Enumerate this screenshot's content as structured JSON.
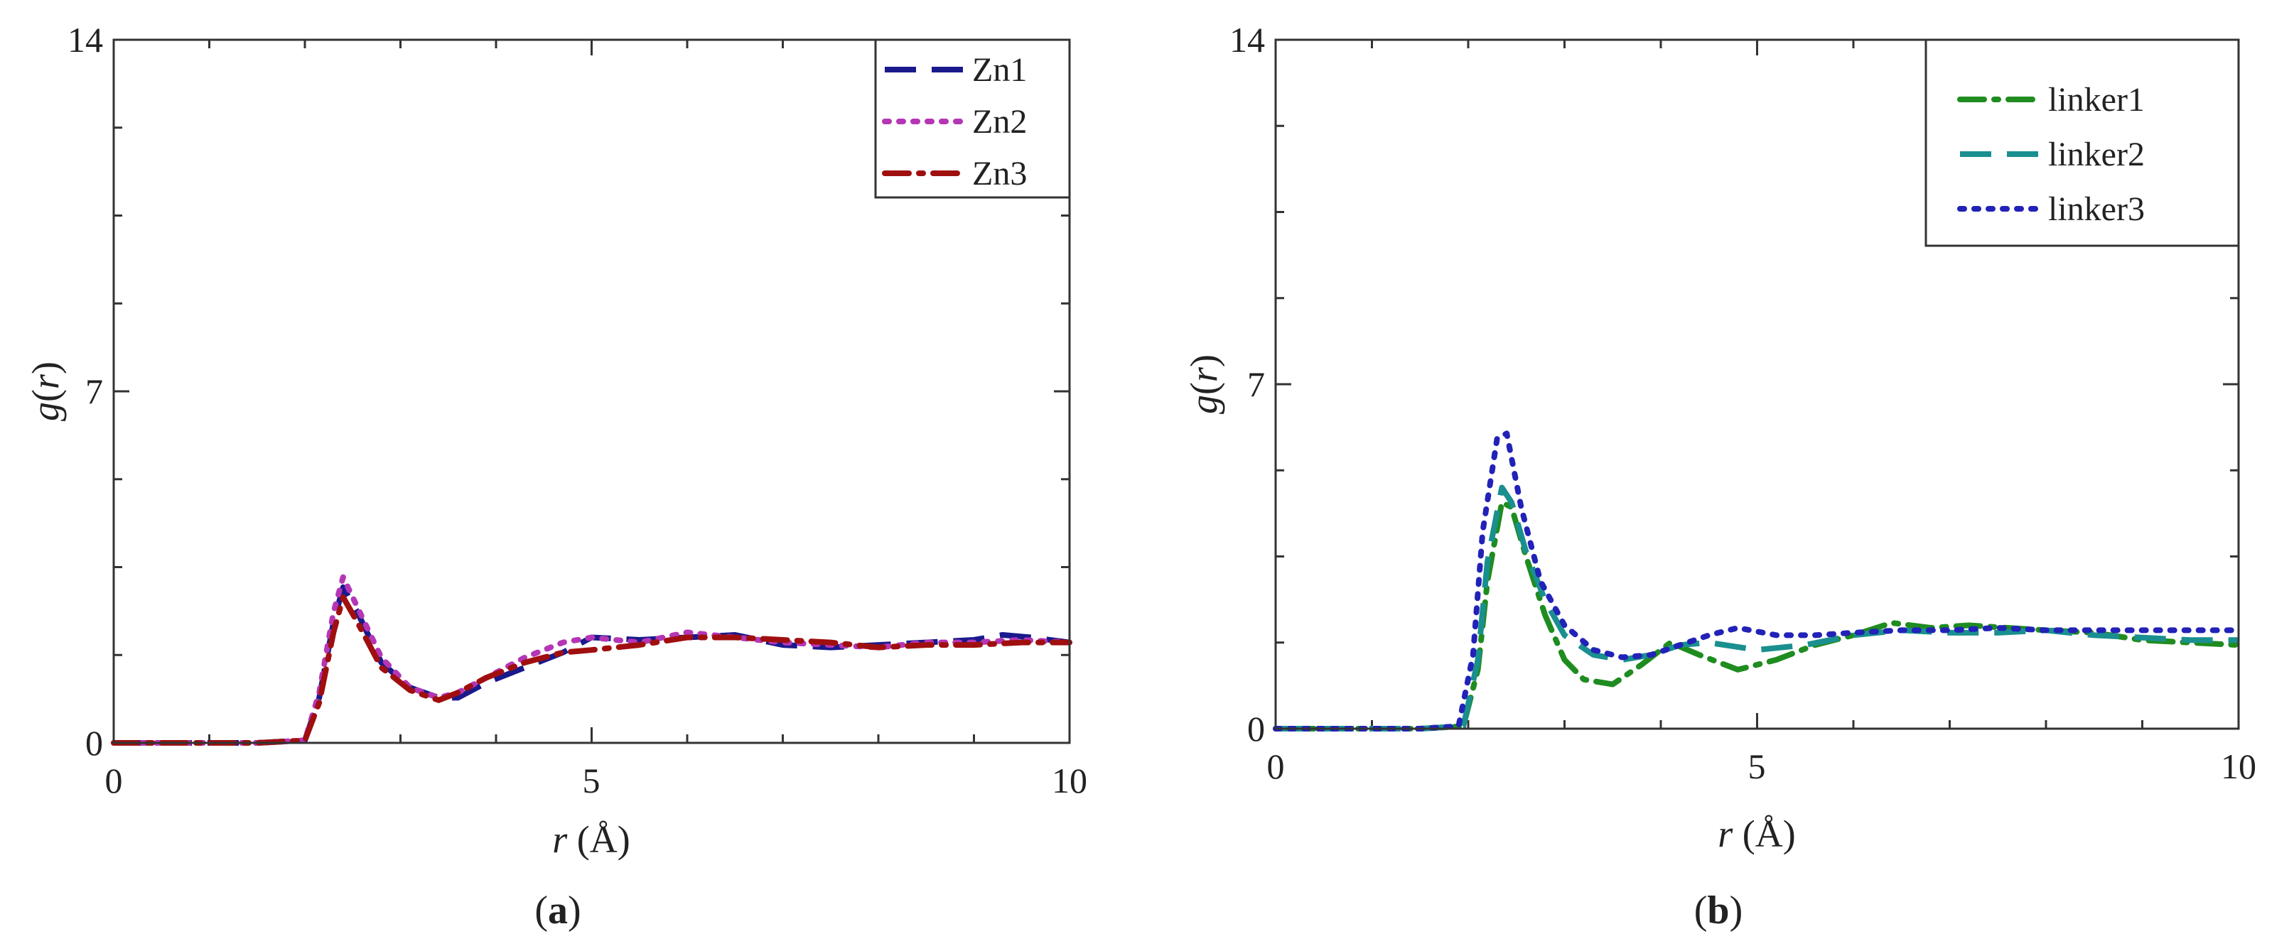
{
  "chart_data": [
    {
      "type": "line",
      "panel_label_open": "(",
      "panel_label": "a",
      "panel_label_close": ")",
      "ylabel_main": "g",
      "ylabel_open": "(",
      "ylabel_var": "r",
      "ylabel_close": ")",
      "xlabel_var": "r",
      "xlabel_unit": " (Å)",
      "xlim": [
        0,
        10
      ],
      "ylim": [
        0,
        14
      ],
      "xticks": [
        0,
        5,
        10
      ],
      "yticks": [
        0,
        7,
        14
      ],
      "legend_position": "top-right",
      "series": [
        {
          "name": "Zn1",
          "color": "#1a1a8c",
          "style": "dashed",
          "x": [
            0,
            1.5,
            2.0,
            2.15,
            2.3,
            2.4,
            2.55,
            2.8,
            3.1,
            3.4,
            3.6,
            3.9,
            4.3,
            4.7,
            5.0,
            5.5,
            6.0,
            6.5,
            7.0,
            7.5,
            8.0,
            8.5,
            9.0,
            9.3,
            9.6,
            10.0
          ],
          "y": [
            0,
            0,
            0.05,
            0.9,
            2.4,
            3.1,
            2.6,
            1.6,
            1.1,
            0.9,
            0.9,
            1.2,
            1.5,
            1.8,
            2.1,
            2.05,
            2.1,
            2.15,
            1.95,
            1.9,
            1.95,
            2.0,
            2.05,
            2.15,
            2.1,
            2.0
          ]
        },
        {
          "name": "Zn2",
          "color": "#b536b5",
          "style": "dotted",
          "x": [
            0,
            1.5,
            2.0,
            2.15,
            2.3,
            2.4,
            2.55,
            2.8,
            3.1,
            3.4,
            3.6,
            3.9,
            4.3,
            4.7,
            5.0,
            5.5,
            6.0,
            6.5,
            7.0,
            7.5,
            8.0,
            8.5,
            9.0,
            9.5,
            10.0
          ],
          "y": [
            0,
            0,
            0.05,
            1.0,
            2.6,
            3.3,
            2.7,
            1.7,
            1.1,
            0.9,
            1.0,
            1.3,
            1.7,
            2.0,
            2.1,
            2.0,
            2.2,
            2.1,
            2.0,
            1.95,
            1.9,
            2.0,
            2.0,
            2.05,
            2.0
          ]
        },
        {
          "name": "Zn3",
          "color": "#a00f0f",
          "style": "dashdot",
          "x": [
            0,
            1.5,
            2.0,
            2.15,
            2.3,
            2.4,
            2.55,
            2.8,
            3.1,
            3.4,
            3.6,
            3.9,
            4.3,
            4.7,
            5.0,
            5.5,
            6.0,
            6.5,
            7.0,
            7.5,
            8.0,
            8.5,
            9.0,
            9.5,
            10.0
          ],
          "y": [
            0,
            0,
            0.05,
            0.8,
            2.2,
            2.9,
            2.4,
            1.5,
            1.05,
            0.85,
            1.0,
            1.3,
            1.6,
            1.8,
            1.85,
            1.95,
            2.1,
            2.1,
            2.05,
            2.0,
            1.9,
            1.95,
            1.95,
            2.0,
            2.0
          ]
        }
      ]
    },
    {
      "type": "line",
      "panel_label_open": "(",
      "panel_label": "b",
      "panel_label_close": ")",
      "ylabel_main": "g",
      "ylabel_open": "(",
      "ylabel_var": "r",
      "ylabel_close": ")",
      "xlabel_var": "r",
      "xlabel_unit": " (Å)",
      "xlim": [
        0,
        10
      ],
      "ylim": [
        0,
        14
      ],
      "xticks": [
        0,
        5,
        10
      ],
      "yticks": [
        0,
        7,
        14
      ],
      "legend_position": "top-right",
      "series": [
        {
          "name": "linker1",
          "color": "#1f8c1f",
          "style": "dashdot",
          "x": [
            0,
            1.5,
            1.95,
            2.1,
            2.2,
            2.35,
            2.45,
            2.6,
            2.8,
            3.0,
            3.2,
            3.5,
            3.8,
            4.1,
            4.4,
            4.8,
            5.2,
            5.6,
            6.0,
            6.4,
            6.8,
            7.2,
            7.6,
            8.0,
            8.5,
            9.0,
            9.5,
            10.0
          ],
          "y": [
            0,
            0,
            0.05,
            1.2,
            3.0,
            4.6,
            4.5,
            3.5,
            2.3,
            1.4,
            1.0,
            0.9,
            1.3,
            1.75,
            1.5,
            1.2,
            1.4,
            1.7,
            1.9,
            2.15,
            2.05,
            2.1,
            2.05,
            2.0,
            1.95,
            1.8,
            1.75,
            1.7
          ]
        },
        {
          "name": "linker2",
          "color": "#1a8f8f",
          "style": "dashed",
          "x": [
            0,
            1.5,
            1.95,
            2.1,
            2.2,
            2.35,
            2.45,
            2.6,
            2.8,
            3.0,
            3.3,
            3.6,
            3.9,
            4.2,
            4.5,
            5.0,
            5.5,
            6.0,
            6.5,
            7.0,
            7.5,
            8.0,
            8.5,
            9.0,
            9.5,
            10.0
          ],
          "y": [
            0,
            0,
            0.05,
            1.4,
            3.4,
            4.9,
            4.6,
            3.6,
            2.6,
            1.9,
            1.5,
            1.4,
            1.5,
            1.7,
            1.75,
            1.6,
            1.7,
            1.9,
            2.0,
            1.95,
            1.95,
            2.0,
            1.9,
            1.85,
            1.8,
            1.8
          ]
        },
        {
          "name": "linker3",
          "color": "#2222b8",
          "style": "dotted",
          "x": [
            0,
            1.5,
            1.9,
            2.05,
            2.15,
            2.3,
            2.4,
            2.55,
            2.75,
            3.0,
            3.3,
            3.6,
            3.9,
            4.2,
            4.5,
            4.8,
            5.2,
            5.6,
            6.0,
            6.5,
            7.0,
            7.5,
            8.0,
            8.5,
            9.0,
            9.5,
            10.0
          ],
          "y": [
            0,
            0,
            0.05,
            1.5,
            4.0,
            5.9,
            6.0,
            4.5,
            3.0,
            2.1,
            1.6,
            1.45,
            1.5,
            1.7,
            1.9,
            2.05,
            1.9,
            1.9,
            1.95,
            2.0,
            2.0,
            2.05,
            2.0,
            2.0,
            2.0,
            2.0,
            2.0
          ]
        }
      ]
    }
  ]
}
